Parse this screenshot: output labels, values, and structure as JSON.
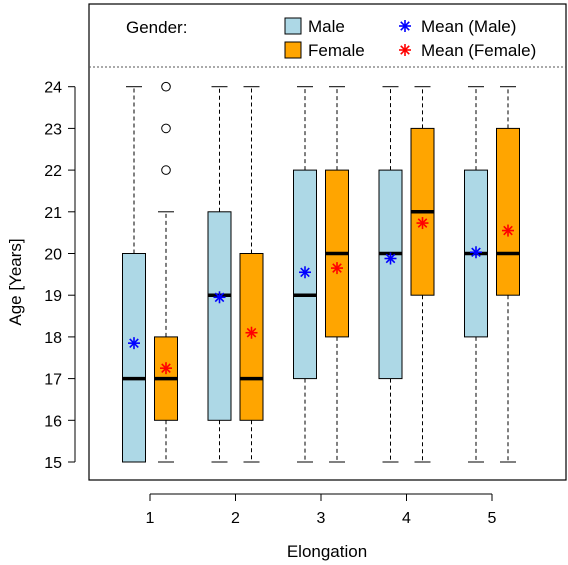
{
  "chart_data": {
    "type": "boxplot",
    "xlabel": "Elongation",
    "ylabel": "Age [Years]",
    "categories": [
      "1",
      "2",
      "3",
      "4",
      "5"
    ],
    "ylim": [
      14.6,
      25.5
    ],
    "yticks": [
      15,
      16,
      17,
      18,
      19,
      20,
      21,
      22,
      23,
      24
    ],
    "yticks_labels": [
      "15",
      "16",
      "17",
      "18",
      "19",
      "20",
      "21",
      "22",
      "23",
      "24"
    ],
    "legend": {
      "title": "Gender:",
      "items": [
        {
          "label": "Male",
          "kind": "box",
          "color": "#add8e6"
        },
        {
          "label": "Female",
          "kind": "box",
          "color": "#ffa500"
        },
        {
          "label": "Mean (Male)",
          "kind": "star",
          "color": "#0000ff"
        },
        {
          "label": "Mean (Female)",
          "kind": "star",
          "color": "#ff0000"
        }
      ]
    },
    "series": [
      {
        "name": "Male",
        "color": "#add8e6",
        "mean_color": "#0000ff",
        "boxes": [
          {
            "category": "1",
            "min": 15,
            "q1": 15,
            "median": 17,
            "q3": 20,
            "max": 24,
            "mean": 17.85,
            "outliers": []
          },
          {
            "category": "2",
            "min": 15,
            "q1": 16,
            "median": 19,
            "q3": 21,
            "max": 24,
            "mean": 18.95,
            "outliers": []
          },
          {
            "category": "3",
            "min": 15,
            "q1": 17,
            "median": 19,
            "q3": 22,
            "max": 24,
            "mean": 19.55,
            "outliers": []
          },
          {
            "category": "4",
            "min": 15,
            "q1": 17,
            "median": 20,
            "q3": 22,
            "max": 24,
            "mean": 19.88,
            "outliers": []
          },
          {
            "category": "5",
            "min": 15,
            "q1": 18,
            "median": 20,
            "q3": 22,
            "max": 24,
            "mean": 20.03,
            "outliers": []
          }
        ]
      },
      {
        "name": "Female",
        "color": "#ffa500",
        "mean_color": "#ff0000",
        "boxes": [
          {
            "category": "1",
            "min": 15,
            "q1": 16,
            "median": 17,
            "q3": 18,
            "max": 21,
            "mean": 17.25,
            "outliers": [
              22,
              23,
              24
            ]
          },
          {
            "category": "2",
            "min": 15,
            "q1": 16,
            "median": 17,
            "q3": 20,
            "max": 24,
            "mean": 18.1,
            "outliers": []
          },
          {
            "category": "3",
            "min": 15,
            "q1": 18,
            "median": 20,
            "q3": 22,
            "max": 24,
            "mean": 19.65,
            "outliers": []
          },
          {
            "category": "4",
            "min": 15,
            "q1": 19,
            "median": 21,
            "q3": 23,
            "max": 24,
            "mean": 20.73,
            "outliers": []
          },
          {
            "category": "5",
            "min": 15,
            "q1": 19,
            "median": 20,
            "q3": 23,
            "max": 24,
            "mean": 20.55,
            "outliers": []
          }
        ]
      }
    ],
    "grid": false,
    "legend_placement": "top"
  }
}
